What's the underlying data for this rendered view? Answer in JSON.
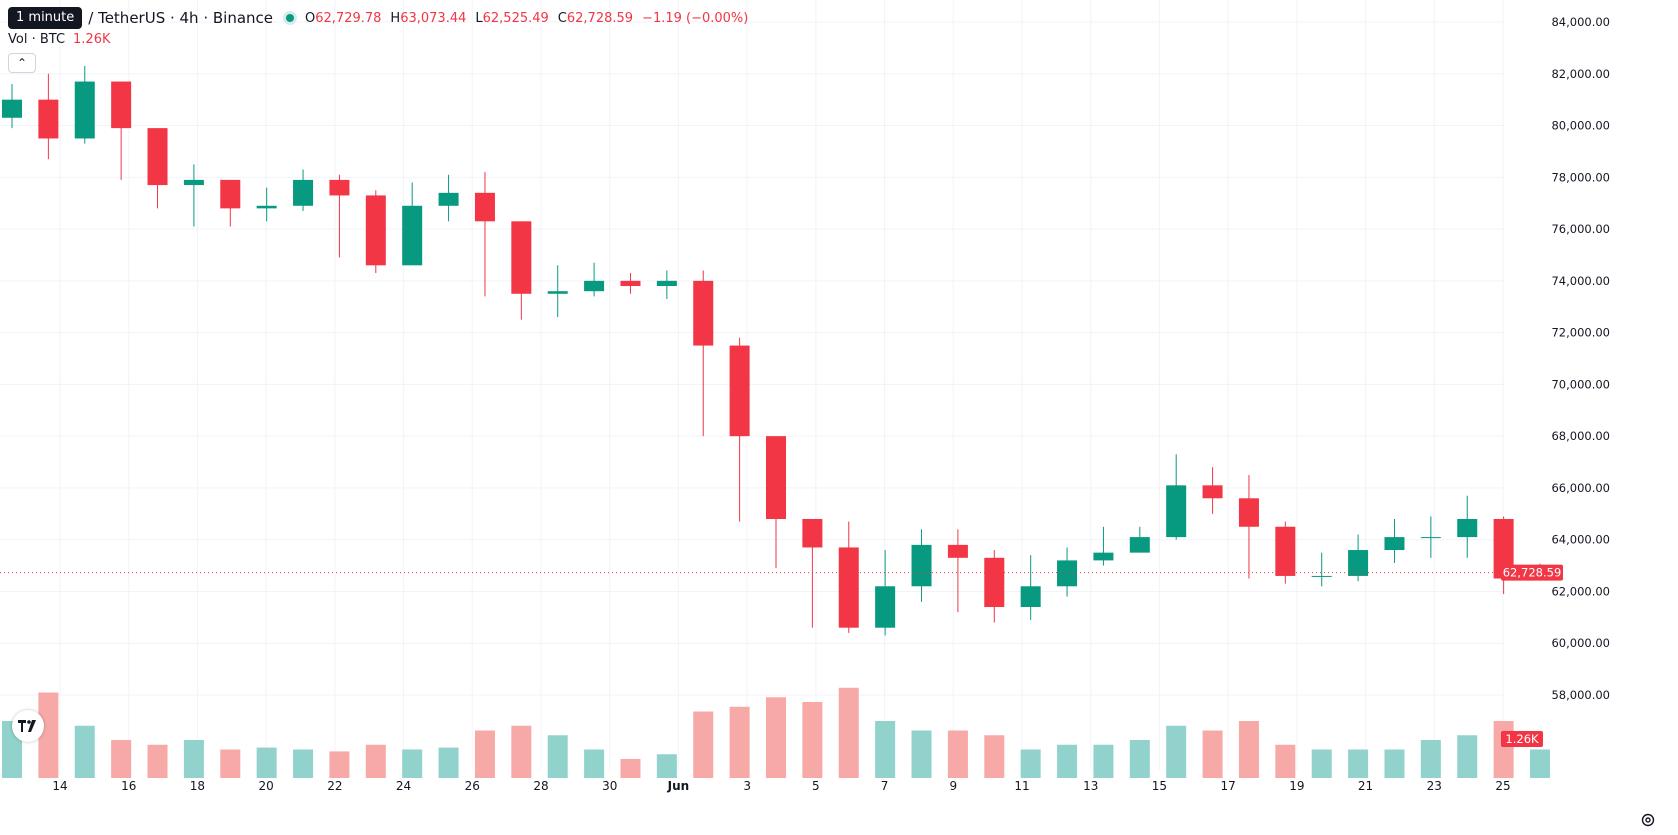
{
  "header": {
    "tooltip": "1 minute",
    "symbol": "/ TetherUS · 4h · Binance",
    "ohlc": {
      "o_label": "O",
      "o_value": "62,729.78",
      "h_label": "H",
      "h_value": "63,073.44",
      "l_label": "L",
      "l_value": "62,525.49",
      "c_label": "C",
      "c_value": "62,728.59",
      "change": "−1.19 (−0.00%)"
    },
    "volume_label": "Vol · BTC",
    "volume_value": "1.26K"
  },
  "price_axis": {
    "labels": [
      "84,000.00",
      "82,000.00",
      "80,000.00",
      "78,000.00",
      "76,000.00",
      "74,000.00",
      "72,000.00",
      "70,000.00",
      "68,000.00",
      "66,000.00",
      "64,000.00",
      "62,000.00",
      "60,000.00",
      "58,000.00"
    ],
    "last_price_label": "62,728.59",
    "last_volume_label": "1.26K"
  },
  "time_axis": {
    "labels": [
      "14",
      "16",
      "18",
      "20",
      "22",
      "24",
      "26",
      "28",
      "30",
      "Jun",
      "3",
      "5",
      "7",
      "9",
      "11",
      "13",
      "15",
      "17",
      "19",
      "21",
      "23",
      "25"
    ]
  },
  "colors": {
    "up": "#089981",
    "down": "#f23645",
    "up_volume": "#92d2cc",
    "down_volume": "#f7a9a7",
    "grid": "#f0f3fa",
    "axis_text": "#131722"
  },
  "chart_data": {
    "type": "candlestick",
    "ylim": [
      56500,
      84500
    ],
    "last_price": 62728.59,
    "x": [
      "May 13",
      "May 14",
      "May 15",
      "May 16",
      "May 17",
      "May 18",
      "May 19",
      "May 20",
      "May 21",
      "May 22",
      "May 23",
      "May 24",
      "May 25",
      "May 26",
      "May 27",
      "May 28",
      "May 29",
      "May 30",
      "May 31",
      "Jun 1",
      "Jun 2",
      "Jun 3",
      "Jun 4",
      "Jun 5",
      "Jun 6",
      "Jun 7",
      "Jun 8",
      "Jun 9",
      "Jun 10",
      "Jun 11",
      "Jun 12",
      "Jun 13",
      "Jun 14",
      "Jun 15",
      "Jun 16",
      "Jun 17",
      "Jun 18",
      "Jun 19",
      "Jun 20",
      "Jun 21",
      "Jun 22",
      "Jun 23",
      "Jun 24"
    ],
    "close": [
      81000,
      79500,
      81700,
      79900,
      77700,
      77900,
      76800,
      76900,
      77900,
      77300,
      74600,
      76900,
      77400,
      76300,
      73500,
      73600,
      74000,
      73800,
      74000,
      71500,
      68000,
      64800,
      63700,
      60600,
      62200,
      63800,
      63300,
      61400,
      62200,
      63200,
      63500,
      64100,
      66100,
      65600,
      64500,
      62600,
      62600,
      63600,
      64100,
      64100,
      64800,
      62500,
      62729
    ],
    "high": [
      81600,
      82000,
      82300,
      80800,
      78400,
      78500,
      77900,
      77600,
      78300,
      78100,
      77500,
      77800,
      78100,
      78200,
      76300,
      74600,
      74700,
      74300,
      74400,
      74400,
      71800,
      67800,
      64700,
      64700,
      63600,
      64400,
      64400,
      63600,
      63400,
      63700,
      64500,
      64500,
      67300,
      66800,
      66500,
      64700,
      63500,
      64200,
      64800,
      64900,
      65700,
      64900,
      63073
    ],
    "low": [
      79900,
      78700,
      79300,
      77900,
      76800,
      76100,
      76100,
      76300,
      76700,
      74900,
      74300,
      75600,
      76300,
      73400,
      72500,
      72600,
      73400,
      73500,
      73300,
      68000,
      64700,
      62900,
      60600,
      60400,
      60300,
      61600,
      61200,
      60800,
      60900,
      61800,
      63000,
      63600,
      64000,
      65000,
      62500,
      62300,
      62200,
      62400,
      63100,
      63300,
      63300,
      61900,
      62525
    ],
    "volume": [
      0.6,
      0.9,
      0.55,
      0.4,
      0.35,
      0.4,
      0.3,
      0.32,
      0.3,
      0.28,
      0.35,
      0.3,
      0.32,
      0.5,
      0.55,
      0.45,
      0.3,
      0.2,
      0.25,
      0.7,
      0.75,
      0.85,
      0.8,
      0.95,
      0.6,
      0.5,
      0.5,
      0.45,
      0.3,
      0.35,
      0.35,
      0.4,
      0.55,
      0.5,
      0.6,
      0.35,
      0.3,
      0.3,
      0.3,
      0.4,
      0.45,
      0.6,
      0.3
    ]
  }
}
